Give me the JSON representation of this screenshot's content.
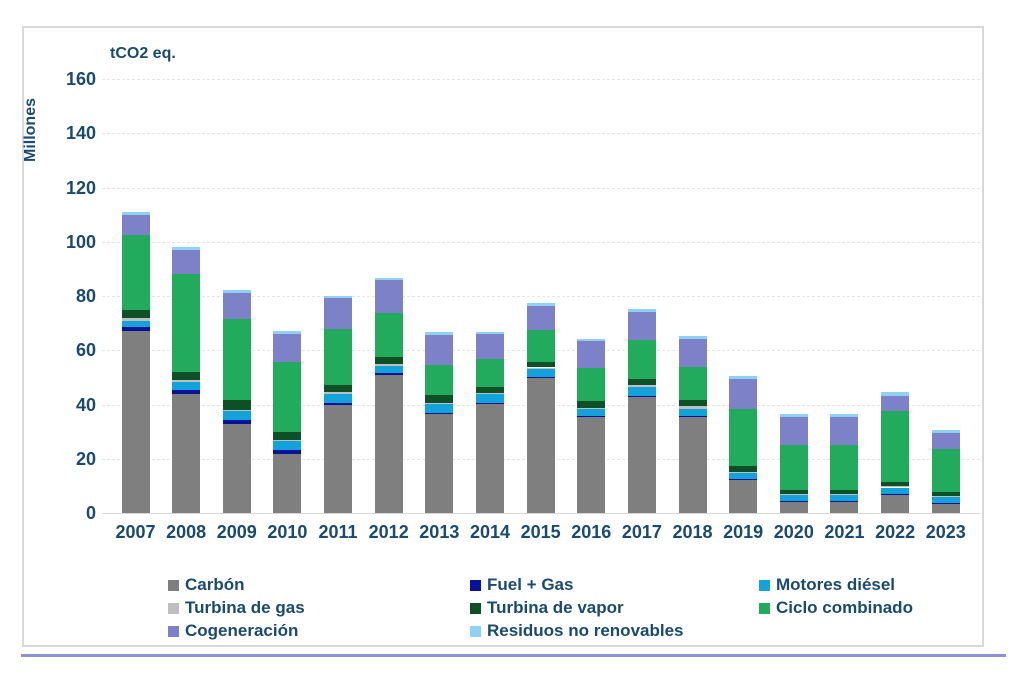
{
  "colors": {
    "text": "#1A4971",
    "gridline": "#E4E4E4",
    "axis_line": "#D6D6D6",
    "frame_border": "#D9D9D9",
    "bottom_rule": "#8F91D8",
    "background": "#FFFFFF"
  },
  "chart_data": {
    "type": "bar",
    "stacked": true,
    "title": "tCO2 eq.",
    "xlabel": "",
    "ylabel": "Millones",
    "ylim": [
      0,
      160
    ],
    "y_ticks": [
      0,
      20,
      40,
      60,
      80,
      100,
      120,
      140,
      160
    ],
    "grid": true,
    "legend_position": "bottom",
    "categories": [
      "2007",
      "2008",
      "2009",
      "2010",
      "2011",
      "2012",
      "2013",
      "2014",
      "2015",
      "2016",
      "2017",
      "2018",
      "2019",
      "2020",
      "2021",
      "2022",
      "2023"
    ],
    "series": [
      {
        "name": "Carbón",
        "color": "#7F7F7F",
        "values": [
          67,
          44,
          33,
          22,
          40,
          51,
          36.5,
          40.5,
          50,
          35.5,
          43,
          35.5,
          12.3,
          4.5,
          4.3,
          7,
          3.7
        ]
      },
      {
        "name": "Fuel + Gas",
        "color": "#07129B",
        "values": [
          1.5,
          1.5,
          1.5,
          1.4,
          0.7,
          0.6,
          0.4,
          0.3,
          0.3,
          0.3,
          0.3,
          0.3,
          0.2,
          0.2,
          0.2,
          0.2,
          0.2
        ]
      },
      {
        "name": "Motores diésel",
        "color": "#12A3DA",
        "values": [
          2.5,
          3.0,
          3.3,
          3.3,
          3.3,
          2.8,
          3.3,
          3.1,
          3.0,
          2.8,
          3.3,
          2.7,
          2.4,
          2.2,
          2.2,
          2.3,
          2.2
        ]
      },
      {
        "name": "Turbina de gas",
        "color": "#BFBFBF",
        "values": [
          1.0,
          0.5,
          0.4,
          0.4,
          0.8,
          0.6,
          0.4,
          0.5,
          0.4,
          0.3,
          0.7,
          1.0,
          0.3,
          0.3,
          0.3,
          0.5,
          0.3
        ]
      },
      {
        "name": "Turbina de vapor",
        "color": "#0D5026",
        "values": [
          3.0,
          3.0,
          3.5,
          3.0,
          2.5,
          2.4,
          2.9,
          2.1,
          2.1,
          2.4,
          2.1,
          2.4,
          2.2,
          1.5,
          1.5,
          1.6,
          1.4
        ]
      },
      {
        "name": "Ciclo combinado",
        "color": "#22AB5D",
        "values": [
          27.5,
          36,
          30,
          25.5,
          20.5,
          16.5,
          11.3,
          10.4,
          11.7,
          12.2,
          14.4,
          12.1,
          21,
          16.6,
          16.6,
          26,
          16
        ]
      },
      {
        "name": "Cogeneración",
        "color": "#7D81C7",
        "values": [
          7.5,
          9,
          9.5,
          10.5,
          11.5,
          12,
          11,
          9,
          8.9,
          9.8,
          10.5,
          10.3,
          11,
          10.2,
          10.2,
          5.6,
          5.6
        ]
      },
      {
        "name": "Residuos no renovables",
        "color": "#8FD1F2",
        "values": [
          0.8,
          1.0,
          1.0,
          1.0,
          0.9,
          0.9,
          0.9,
          0.8,
          1.0,
          0.9,
          1.0,
          1.0,
          1.0,
          1.1,
          1.2,
          1.3,
          1.2
        ]
      }
    ]
  }
}
